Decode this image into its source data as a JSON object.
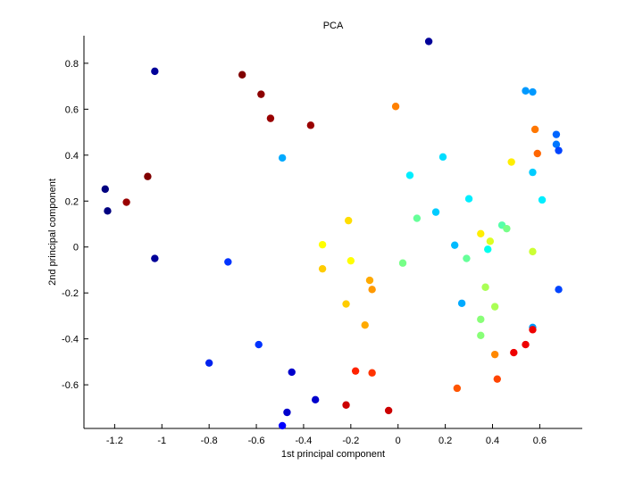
{
  "chart_data": {
    "type": "scatter",
    "title": "PCA",
    "xlabel": "1st principal component",
    "ylabel": "2nd principal component",
    "xlim": [
      -1.33,
      0.78
    ],
    "ylim": [
      -0.79,
      0.92
    ],
    "xticks": [
      -1.2,
      -1,
      -0.8,
      -0.6,
      -0.4,
      -0.2,
      0,
      0.2,
      0.4,
      0.6
    ],
    "xtick_labels": [
      "-1.2",
      "-1",
      "-0.8",
      "-0.6",
      "-0.4",
      "-0.2",
      "0",
      "0.2",
      "0.4",
      "0.6"
    ],
    "yticks": [
      -0.6,
      -0.4,
      -0.2,
      0,
      0.2,
      0.4,
      0.6,
      0.8
    ],
    "ytick_labels": [
      "-0.6",
      "-0.4",
      "-0.2",
      "0",
      "0.2",
      "0.4",
      "0.6",
      "0.8"
    ],
    "grid": false,
    "legend": "none",
    "points": [
      {
        "x": 0.13,
        "y": 0.895,
        "color": "#000099"
      },
      {
        "x": -1.03,
        "y": 0.765,
        "color": "#000099"
      },
      {
        "x": -0.66,
        "y": 0.75,
        "color": "#800000"
      },
      {
        "x": -0.58,
        "y": 0.665,
        "color": "#8c0000"
      },
      {
        "x": -0.54,
        "y": 0.56,
        "color": "#990000"
      },
      {
        "x": -0.37,
        "y": 0.53,
        "color": "#990000"
      },
      {
        "x": -0.01,
        "y": 0.612,
        "color": "#ff8000"
      },
      {
        "x": 0.54,
        "y": 0.68,
        "color": "#0099ff"
      },
      {
        "x": 0.57,
        "y": 0.675,
        "color": "#0099ff"
      },
      {
        "x": 0.58,
        "y": 0.512,
        "color": "#ff7700"
      },
      {
        "x": 0.67,
        "y": 0.49,
        "color": "#0066ff"
      },
      {
        "x": 0.67,
        "y": 0.447,
        "color": "#0077ff"
      },
      {
        "x": 0.68,
        "y": 0.42,
        "color": "#0044ff"
      },
      {
        "x": 0.59,
        "y": 0.407,
        "color": "#ff6600"
      },
      {
        "x": 0.48,
        "y": 0.37,
        "color": "#ffee00"
      },
      {
        "x": 0.57,
        "y": 0.325,
        "color": "#00ccff"
      },
      {
        "x": 0.61,
        "y": 0.205,
        "color": "#00eeff"
      },
      {
        "x": -0.49,
        "y": 0.388,
        "color": "#00aaff"
      },
      {
        "x": 0.19,
        "y": 0.392,
        "color": "#00ddff"
      },
      {
        "x": 0.05,
        "y": 0.312,
        "color": "#00eeff"
      },
      {
        "x": 0.3,
        "y": 0.21,
        "color": "#00eeff"
      },
      {
        "x": -1.06,
        "y": 0.307,
        "color": "#800000"
      },
      {
        "x": -1.24,
        "y": 0.252,
        "color": "#000080"
      },
      {
        "x": -1.15,
        "y": 0.195,
        "color": "#990000"
      },
      {
        "x": -1.23,
        "y": 0.157,
        "color": "#000080"
      },
      {
        "x": 0.16,
        "y": 0.152,
        "color": "#00ccff"
      },
      {
        "x": 0.08,
        "y": 0.125,
        "color": "#66ff99"
      },
      {
        "x": -0.21,
        "y": 0.115,
        "color": "#ffdd00"
      },
      {
        "x": 0.44,
        "y": 0.095,
        "color": "#55ffaa"
      },
      {
        "x": 0.46,
        "y": 0.08,
        "color": "#77ff88"
      },
      {
        "x": 0.35,
        "y": 0.058,
        "color": "#ffee00"
      },
      {
        "x": 0.39,
        "y": 0.025,
        "color": "#ddff22"
      },
      {
        "x": -0.32,
        "y": 0.01,
        "color": "#ffff00"
      },
      {
        "x": 0.24,
        "y": 0.008,
        "color": "#00bbff"
      },
      {
        "x": 0.38,
        "y": -0.01,
        "color": "#00ffee"
      },
      {
        "x": 0.57,
        "y": -0.02,
        "color": "#ccff33"
      },
      {
        "x": -1.03,
        "y": -0.05,
        "color": "#000099"
      },
      {
        "x": 0.29,
        "y": -0.05,
        "color": "#66ff99"
      },
      {
        "x": -0.2,
        "y": -0.06,
        "color": "#ffff00"
      },
      {
        "x": -0.72,
        "y": -0.065,
        "color": "#0033ff"
      },
      {
        "x": 0.02,
        "y": -0.07,
        "color": "#77ff88"
      },
      {
        "x": -0.32,
        "y": -0.095,
        "color": "#ffcc00"
      },
      {
        "x": -0.12,
        "y": -0.145,
        "color": "#ffaa00"
      },
      {
        "x": 0.37,
        "y": -0.175,
        "color": "#aaff55"
      },
      {
        "x": -0.11,
        "y": -0.185,
        "color": "#ff9900"
      },
      {
        "x": 0.68,
        "y": -0.185,
        "color": "#0044ff"
      },
      {
        "x": 0.27,
        "y": -0.245,
        "color": "#00aaff"
      },
      {
        "x": -0.22,
        "y": -0.248,
        "color": "#ffcc00"
      },
      {
        "x": 0.41,
        "y": -0.26,
        "color": "#aaff55"
      },
      {
        "x": 0.35,
        "y": -0.315,
        "color": "#88ff77"
      },
      {
        "x": -0.14,
        "y": -0.34,
        "color": "#ffaa00"
      },
      {
        "x": 0.57,
        "y": -0.35,
        "color": "#0099ff"
      },
      {
        "x": 0.57,
        "y": -0.36,
        "color": "#ee0000"
      },
      {
        "x": 0.35,
        "y": -0.385,
        "color": "#88ff77"
      },
      {
        "x": -0.59,
        "y": -0.425,
        "color": "#0033ff"
      },
      {
        "x": 0.54,
        "y": -0.425,
        "color": "#ee0000"
      },
      {
        "x": 0.49,
        "y": -0.46,
        "color": "#ee0000"
      },
      {
        "x": 0.41,
        "y": -0.468,
        "color": "#ff8800"
      },
      {
        "x": -0.8,
        "y": -0.505,
        "color": "#0022ee"
      },
      {
        "x": -0.18,
        "y": -0.54,
        "color": "#ff2200"
      },
      {
        "x": -0.45,
        "y": -0.545,
        "color": "#0000cc"
      },
      {
        "x": -0.11,
        "y": -0.548,
        "color": "#ff3300"
      },
      {
        "x": 0.42,
        "y": -0.575,
        "color": "#ff4400"
      },
      {
        "x": 0.25,
        "y": -0.615,
        "color": "#ff5500"
      },
      {
        "x": -0.35,
        "y": -0.665,
        "color": "#0000cc"
      },
      {
        "x": -0.22,
        "y": -0.688,
        "color": "#cc0000"
      },
      {
        "x": -0.04,
        "y": -0.712,
        "color": "#cc0000"
      },
      {
        "x": -0.47,
        "y": -0.72,
        "color": "#0000cc"
      },
      {
        "x": -0.49,
        "y": -0.778,
        "color": "#0000ff"
      }
    ]
  }
}
